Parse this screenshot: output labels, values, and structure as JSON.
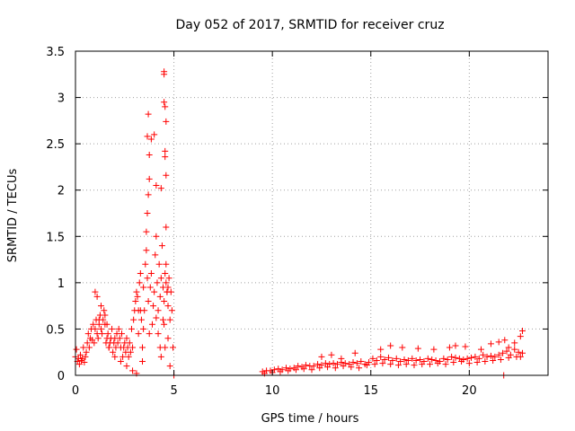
{
  "chart_data": {
    "type": "scatter",
    "title": "Day 052 of 2017, SRMTID for receiver cruz",
    "xlabel": "GPS time / hours",
    "ylabel": "SRMTID / TECUs",
    "xlim": [
      0,
      24
    ],
    "ylim": [
      0,
      3.5
    ],
    "x_ticks": [
      0,
      5,
      10,
      15,
      20
    ],
    "x_tick_labels": [
      "0",
      "5",
      "10",
      "15",
      "20"
    ],
    "y_ticks": [
      0,
      0.5,
      1,
      1.5,
      2,
      2.5,
      3,
      3.5
    ],
    "y_tick_labels": [
      "0",
      "0.5",
      "1",
      "1.5",
      "2",
      "2.5",
      "3",
      "3.5"
    ],
    "grid": true,
    "marker": "+",
    "color": "#ff0000",
    "series": [
      {
        "name": "SRMTID",
        "x": [
          0.0,
          0.05,
          0.1,
          0.15,
          0.2,
          0.25,
          0.3,
          0.35,
          0.4,
          0.45,
          0.5,
          0.55,
          0.6,
          0.65,
          0.7,
          0.75,
          0.8,
          0.85,
          0.9,
          0.95,
          1.0,
          1.05,
          1.1,
          1.15,
          1.2,
          1.25,
          1.3,
          1.35,
          1.4,
          1.45,
          1.5,
          1.55,
          1.6,
          1.65,
          1.7,
          1.75,
          1.8,
          1.85,
          1.9,
          1.95,
          2.0,
          2.05,
          2.1,
          2.15,
          2.2,
          2.25,
          2.3,
          2.35,
          2.4,
          2.45,
          2.5,
          2.55,
          2.6,
          2.65,
          2.7,
          2.75,
          2.8,
          2.85,
          2.9,
          2.95,
          3.0,
          3.05,
          3.1,
          3.15,
          3.2,
          3.25,
          3.3,
          3.35,
          3.4,
          3.45,
          3.5,
          3.55,
          3.6,
          3.65,
          3.7,
          3.75,
          3.8,
          3.85,
          3.9,
          3.95,
          4.0,
          4.05,
          4.1,
          4.15,
          4.2,
          4.25,
          4.3,
          4.35,
          4.4,
          4.45,
          4.5,
          4.55,
          4.6,
          4.65,
          4.7,
          4.75,
          4.8,
          4.85,
          4.9,
          4.95,
          5.0,
          1.0,
          1.1,
          1.2,
          1.3,
          1.5,
          1.6,
          1.7,
          2.0,
          2.3,
          2.6,
          2.9,
          3.1,
          3.2,
          3.3,
          3.45,
          3.6,
          3.65,
          3.7,
          3.75,
          3.85,
          4.0,
          4.1,
          4.2,
          4.3,
          4.35,
          4.45,
          4.5,
          4.55,
          4.6,
          4.65,
          4.7,
          4.8,
          3.65,
          3.7,
          3.75,
          4.5,
          4.5,
          4.5,
          4.55,
          4.55,
          4.55,
          4.6,
          4.6,
          4.35,
          4.1,
          4.6,
          4.7,
          3.4,
          9.5,
          9.7,
          9.9,
          10.1,
          10.3,
          10.5,
          10.7,
          10.9,
          11.1,
          11.3,
          11.5,
          11.7,
          11.9,
          12.1,
          12.3,
          12.5,
          12.7,
          12.9,
          13.1,
          13.3,
          13.5,
          13.7,
          13.9,
          14.1,
          14.3,
          14.5,
          14.7,
          14.9,
          15.1,
          15.3,
          15.5,
          15.7,
          15.9,
          16.1,
          16.3,
          16.5,
          16.7,
          16.9,
          17.1,
          17.3,
          17.5,
          17.7,
          17.9,
          18.1,
          18.3,
          18.5,
          18.7,
          18.9,
          19.1,
          19.3,
          19.5,
          19.7,
          19.9,
          20.1,
          20.3,
          20.5,
          20.7,
          20.9,
          21.1,
          21.3,
          21.5,
          21.7,
          21.9,
          22.1,
          22.3,
          22.5,
          22.7,
          9.6,
          10.0,
          10.4,
          10.8,
          11.2,
          11.6,
          12.0,
          12.4,
          12.8,
          13.2,
          13.6,
          14.0,
          14.4,
          14.8,
          15.2,
          15.6,
          16.0,
          16.4,
          16.8,
          17.2,
          17.6,
          18.0,
          18.4,
          18.8,
          19.2,
          19.6,
          20.0,
          20.4,
          20.8,
          21.2,
          21.6,
          22.0,
          22.4,
          22.6,
          12.5,
          13.0,
          13.5,
          14.2,
          15.5,
          16.0,
          16.6,
          17.4,
          18.2,
          19.0,
          19.3,
          19.8,
          20.6,
          21.1,
          21.5,
          21.8,
          22.0,
          22.3,
          22.6,
          22.7,
          21.75
        ],
        "y": [
          0.2,
          0.28,
          0.15,
          0.18,
          0.12,
          0.22,
          0.16,
          0.18,
          0.3,
          0.14,
          0.2,
          0.25,
          0.35,
          0.45,
          0.3,
          0.4,
          0.5,
          0.38,
          0.55,
          0.35,
          0.5,
          0.6,
          0.45,
          0.4,
          0.55,
          0.65,
          0.5,
          0.45,
          0.6,
          0.7,
          0.55,
          0.35,
          0.4,
          0.45,
          0.3,
          0.35,
          0.4,
          0.5,
          0.25,
          0.35,
          0.4,
          0.3,
          0.45,
          0.35,
          0.5,
          0.4,
          0.3,
          0.45,
          0.2,
          0.3,
          0.35,
          0.25,
          0.4,
          0.3,
          0.2,
          0.35,
          0.25,
          0.5,
          0.3,
          0.6,
          0.7,
          0.8,
          0.9,
          0.85,
          0.7,
          1.0,
          1.1,
          0.6,
          0.3,
          0.5,
          0.7,
          1.2,
          1.35,
          1.05,
          0.8,
          0.45,
          0.95,
          1.1,
          0.55,
          0.75,
          0.9,
          1.3,
          1.5,
          1.0,
          0.7,
          1.2,
          0.85,
          1.05,
          1.4,
          0.95,
          0.8,
          1.1,
          1.0,
          0.9,
          0.75,
          1.05,
          0.6,
          0.9,
          0.7,
          0.3,
          0.0,
          0.9,
          0.85,
          0.6,
          0.75,
          0.65,
          0.55,
          0.3,
          0.2,
          0.15,
          0.1,
          0.05,
          0.02,
          0.45,
          0.7,
          0.95,
          1.55,
          1.75,
          1.95,
          2.12,
          2.55,
          2.6,
          2.05,
          0.45,
          0.3,
          0.2,
          0.6,
          0.55,
          0.3,
          1.2,
          0.9,
          0.4,
          0.1,
          2.58,
          2.82,
          2.38,
          3.25,
          3.28,
          2.95,
          2.9,
          2.42,
          2.36,
          2.74,
          2.16,
          2.02,
          0.62,
          1.6,
          0.95,
          0.15,
          0.04,
          0.05,
          0.05,
          0.06,
          0.07,
          0.06,
          0.08,
          0.07,
          0.08,
          0.1,
          0.09,
          0.11,
          0.1,
          0.1,
          0.12,
          0.11,
          0.13,
          0.12,
          0.13,
          0.12,
          0.14,
          0.13,
          0.12,
          0.14,
          0.13,
          0.15,
          0.12,
          0.14,
          0.18,
          0.16,
          0.2,
          0.17,
          0.19,
          0.16,
          0.18,
          0.15,
          0.17,
          0.16,
          0.18,
          0.16,
          0.17,
          0.15,
          0.18,
          0.17,
          0.16,
          0.15,
          0.18,
          0.17,
          0.2,
          0.19,
          0.18,
          0.17,
          0.18,
          0.19,
          0.2,
          0.18,
          0.22,
          0.2,
          0.21,
          0.2,
          0.22,
          0.24,
          0.26,
          0.22,
          0.28,
          0.25,
          0.24,
          0.02,
          0.03,
          0.04,
          0.05,
          0.06,
          0.07,
          0.06,
          0.08,
          0.09,
          0.08,
          0.1,
          0.09,
          0.08,
          0.11,
          0.12,
          0.13,
          0.12,
          0.11,
          0.12,
          0.11,
          0.12,
          0.12,
          0.13,
          0.12,
          0.14,
          0.15,
          0.13,
          0.14,
          0.15,
          0.16,
          0.17,
          0.19,
          0.2,
          0.2,
          0.2,
          0.22,
          0.18,
          0.24,
          0.28,
          0.32,
          0.3,
          0.29,
          0.28,
          0.3,
          0.32,
          0.31,
          0.28,
          0.34,
          0.36,
          0.38,
          0.3,
          0.35,
          0.42,
          0.48,
          0.0
        ]
      }
    ]
  }
}
